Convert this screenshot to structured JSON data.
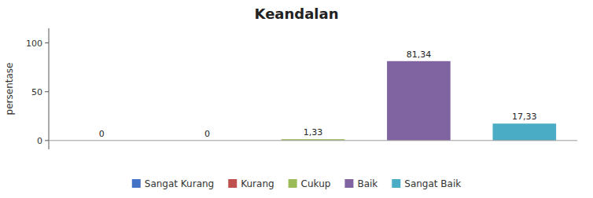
{
  "chart_data": {
    "type": "bar",
    "title": "Keandalan",
    "ylabel": "persentase",
    "categories": [
      "Sangat Kurang",
      "Kurang",
      "Cukup",
      "Baik",
      "Sangat Baik"
    ],
    "values": [
      0,
      0,
      1.33,
      81.34,
      17.33
    ],
    "value_labels": [
      "0",
      "0",
      "1,33",
      "81,34",
      "17,33"
    ],
    "colors": [
      "#4472C4",
      "#C0504D",
      "#9BBB59",
      "#8064A2",
      "#4BACC6"
    ],
    "ylim": [
      -9,
      115
    ],
    "yticks": [
      0,
      50,
      100
    ],
    "grid": false,
    "legend": "bottom",
    "data_labels": true,
    "tick_labels": "y"
  }
}
